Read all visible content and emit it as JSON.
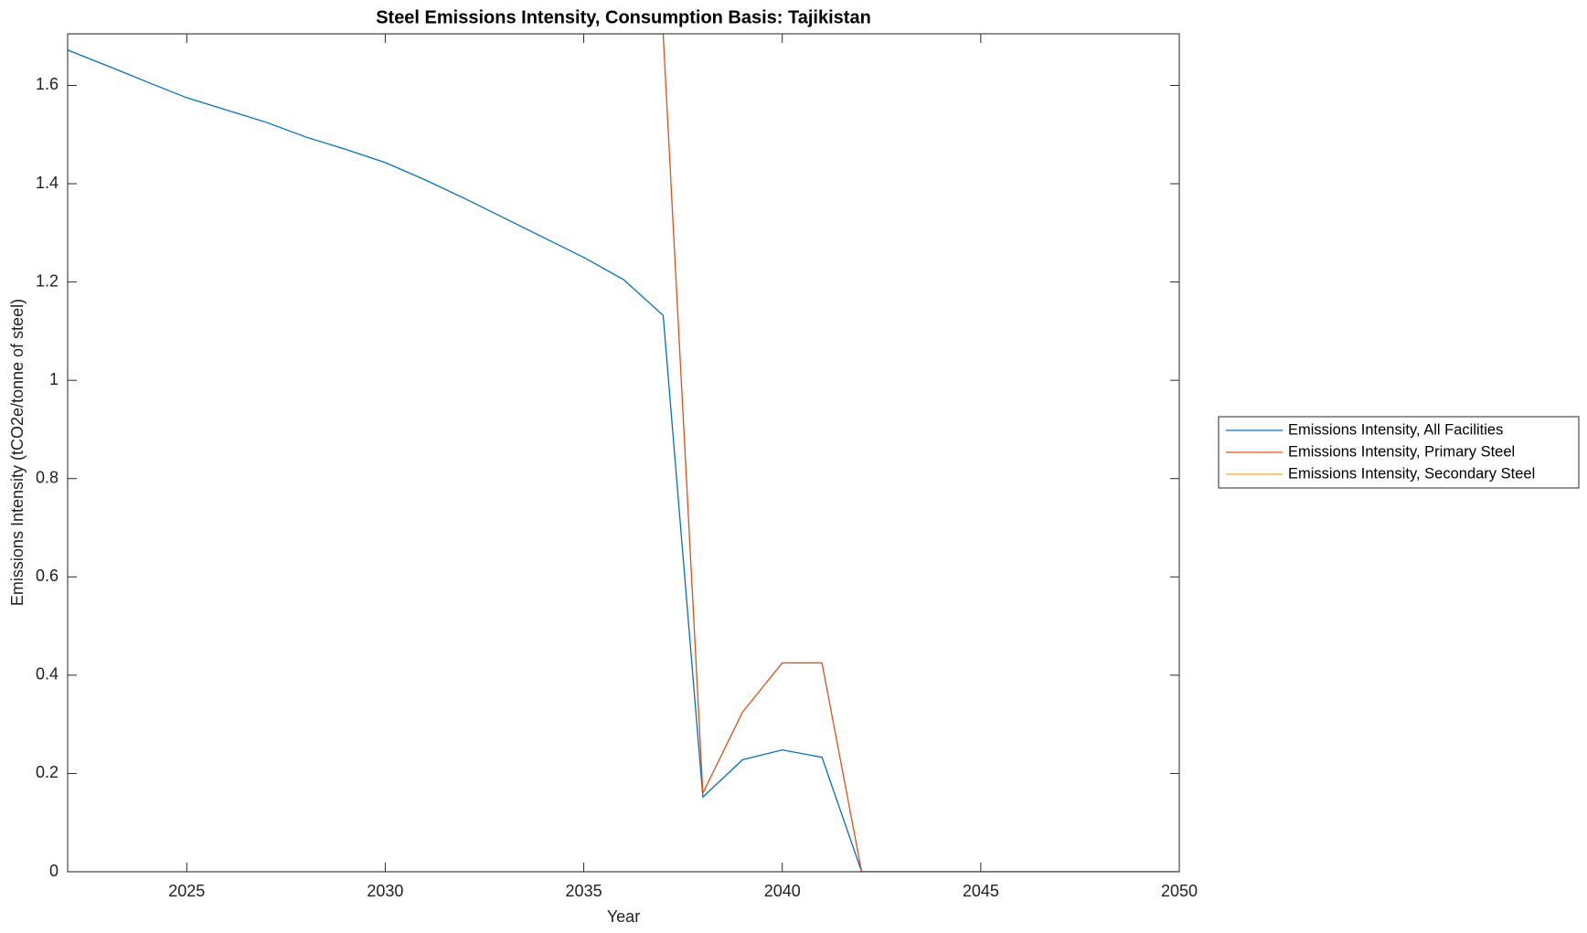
{
  "chart_data": {
    "type": "line",
    "title": "Steel Emissions Intensity, Consumption Basis: Tajikistan",
    "x_label": "Year",
    "y_label": "Emissions Intensity (tCO2e/tonne of steel)",
    "x": [
      2022,
      2023,
      2024,
      2025,
      2026,
      2027,
      2028,
      2029,
      2030,
      2031,
      2032,
      2033,
      2034,
      2035,
      2036,
      2037,
      2038,
      2039,
      2040,
      2041,
      2042,
      2043,
      2044,
      2045,
      2046,
      2047,
      2048,
      2049,
      2050
    ],
    "series": [
      {
        "name": "Emissions Intensity, All Facilities",
        "color": "#0072bd",
        "values": [
          1.672,
          1.64,
          1.607,
          1.575,
          1.55,
          1.525,
          1.495,
          1.47,
          1.443,
          1.408,
          1.37,
          1.33,
          1.29,
          1.25,
          1.205,
          1.132,
          0.152,
          0.228,
          0.248,
          0.233,
          0,
          0,
          0,
          0,
          0,
          0,
          0,
          0,
          0
        ]
      },
      {
        "name": "Emissions Intensity, Primary Steel",
        "color": "#d95319",
        "values": [
          1.705,
          1.705,
          1.705,
          1.705,
          1.705,
          1.705,
          1.705,
          1.705,
          1.705,
          1.705,
          1.705,
          1.705,
          1.705,
          1.705,
          1.705,
          1.705,
          0.16,
          0.325,
          0.425,
          0.425,
          0,
          0,
          0,
          0,
          0,
          0,
          0,
          0,
          0
        ]
      },
      {
        "name": "Emissions Intensity, Secondary Steel",
        "color": "#edb120",
        "values": [
          0,
          0,
          0,
          0,
          0,
          0,
          0,
          0,
          0,
          0,
          0,
          0,
          0,
          0,
          0,
          0,
          0,
          0,
          0,
          0,
          0,
          0,
          0,
          0,
          0,
          0,
          0,
          0,
          0
        ]
      }
    ],
    "xlim": [
      2022,
      2050
    ],
    "xticks": [
      2025,
      2030,
      2035,
      2040,
      2045,
      2050
    ],
    "ylim": [
      0,
      1.705
    ],
    "yticks": [
      0,
      0.2,
      0.4,
      0.6,
      0.8,
      1,
      1.2,
      1.4,
      1.6
    ],
    "grid": false,
    "legend": "outside-right"
  }
}
